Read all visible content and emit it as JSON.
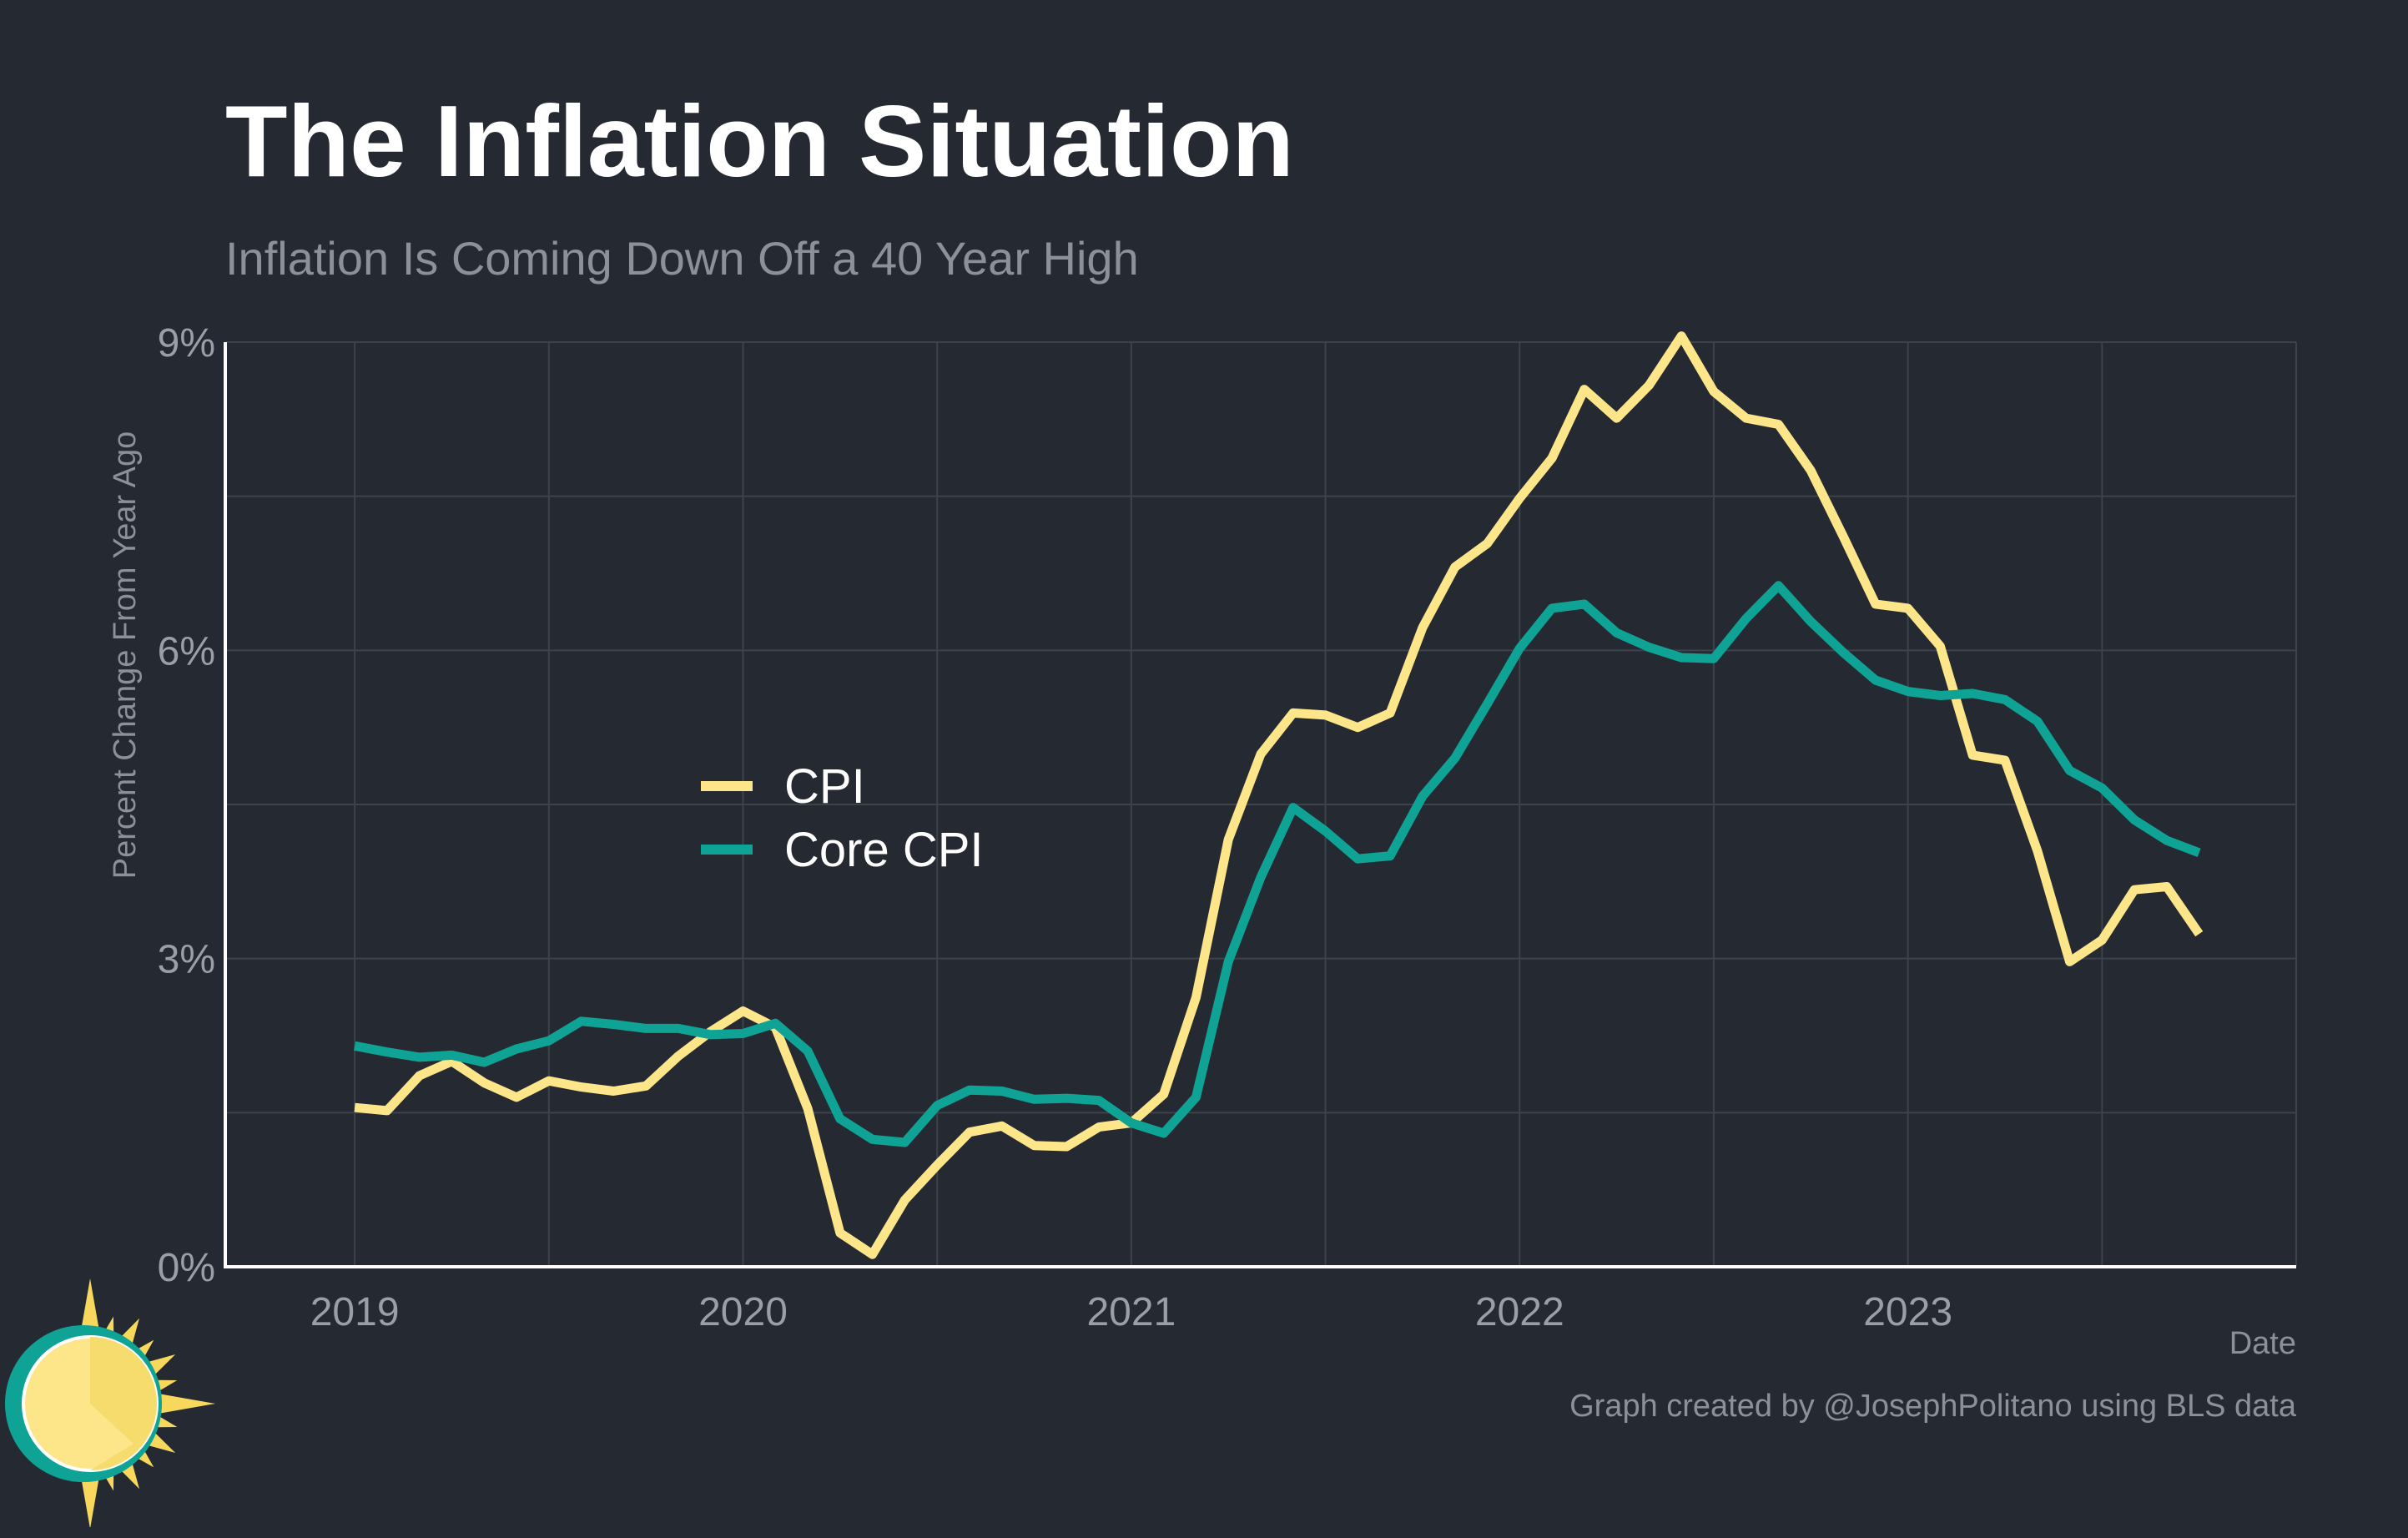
{
  "chart_data": {
    "type": "line",
    "title": "The Inflation Situation",
    "subtitle": "Inflation Is Coming Down Off a 40 Year High",
    "xlabel": "Date",
    "ylabel": "Percent Change From Year Ago",
    "caption": "Graph created by @JosephPolitano using BLS data",
    "x_start": "2019-01",
    "xlim": [
      "2018-09",
      "2024-01"
    ],
    "ylim": [
      0,
      9
    ],
    "x_ticks": [
      {
        "date": "2019-01",
        "label": "2019"
      },
      {
        "date": "2020-01",
        "label": "2020"
      },
      {
        "date": "2021-01",
        "label": "2021"
      },
      {
        "date": "2022-01",
        "label": "2022"
      },
      {
        "date": "2023-01",
        "label": "2023"
      }
    ],
    "y_ticks": [
      {
        "value": 0,
        "label": "0%"
      },
      {
        "value": 3,
        "label": "3%"
      },
      {
        "value": 6,
        "label": "6%"
      },
      {
        "value": 9,
        "label": "9%"
      }
    ],
    "y_gridlines": [
      0,
      1.5,
      3,
      4.5,
      6,
      7.5,
      9
    ],
    "grid": true,
    "legend_position": "center-left",
    "series": [
      {
        "name": "CPI",
        "color": "#fde68a",
        "values": [
          1.55,
          1.52,
          1.86,
          2.0,
          1.79,
          1.65,
          1.81,
          1.75,
          1.71,
          1.76,
          2.05,
          2.29,
          2.49,
          2.33,
          1.54,
          0.33,
          0.12,
          0.65,
          0.99,
          1.31,
          1.37,
          1.18,
          1.17,
          1.36,
          1.4,
          1.68,
          2.62,
          4.16,
          4.99,
          5.39,
          5.37,
          5.25,
          5.39,
          6.22,
          6.81,
          7.04,
          7.48,
          7.87,
          8.54,
          8.26,
          8.58,
          9.06,
          8.52,
          8.26,
          8.2,
          7.75,
          7.11,
          6.45,
          6.41,
          6.04,
          4.98,
          4.93,
          4.05,
          2.97,
          3.18,
          3.67,
          3.7,
          3.24
        ]
      },
      {
        "name": "Core CPI",
        "color": "#0fa395",
        "values": [
          2.15,
          2.09,
          2.04,
          2.06,
          1.99,
          2.12,
          2.2,
          2.39,
          2.36,
          2.32,
          2.32,
          2.26,
          2.27,
          2.37,
          2.1,
          1.44,
          1.24,
          1.21,
          1.57,
          1.72,
          1.71,
          1.63,
          1.64,
          1.62,
          1.4,
          1.3,
          1.65,
          2.97,
          3.79,
          4.47,
          4.24,
          3.97,
          4.0,
          4.58,
          4.95,
          5.48,
          6.02,
          6.41,
          6.45,
          6.17,
          6.03,
          5.93,
          5.92,
          6.31,
          6.63,
          6.28,
          5.98,
          5.71,
          5.6,
          5.56,
          5.58,
          5.52,
          5.31,
          4.83,
          4.66,
          4.35,
          4.15,
          4.03
        ]
      }
    ]
  },
  "logo": {
    "name": "sun-logo",
    "colors": {
      "ring": "#0fa395",
      "sun": "#fde68a",
      "sun_shade": "#f5dc6c",
      "rays": "#f7d85c"
    }
  },
  "style": {
    "background": "#252932",
    "grid_color": "#3d424b",
    "axis_color": "#ffffff"
  }
}
